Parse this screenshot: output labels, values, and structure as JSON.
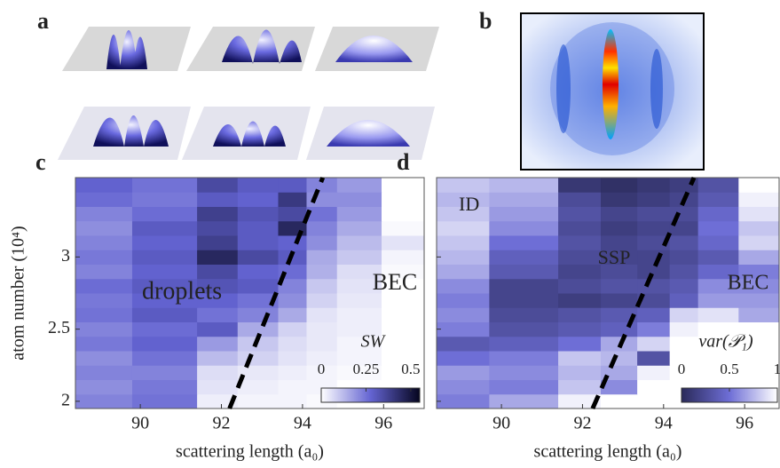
{
  "figure_labels": {
    "a": "a",
    "b": "b"
  },
  "chart_data": [
    {
      "type": "heatmap",
      "panel_label": "c",
      "xlabel": "scattering length (a₀)",
      "ylabel": "atom number (10⁴)",
      "xlim": [
        88.4,
        97.0
      ],
      "xticks": [
        90,
        92,
        94,
        96
      ],
      "ylim": [
        1.95,
        3.55
      ],
      "yticks": [
        2,
        2.5,
        3
      ],
      "show_ytick_labels": true,
      "x_edges": [
        88.4,
        89.8,
        91.4,
        92.4,
        93.4,
        94.1,
        94.85,
        95.95,
        97.0
      ],
      "y_edges": [
        1.95,
        2.05,
        2.15,
        2.25,
        2.35,
        2.45,
        2.55,
        2.65,
        2.75,
        2.85,
        2.95,
        3.05,
        3.15,
        3.25,
        3.35,
        3.45,
        3.55
      ],
      "z": [
        [
          0.22,
          0.25,
          0.03,
          0.02,
          0.02,
          0.01,
          0,
          0
        ],
        [
          0.2,
          0.24,
          0.05,
          0.03,
          0.02,
          0.02,
          0,
          0
        ],
        [
          0.22,
          0.22,
          0.06,
          0.04,
          0.03,
          0.02,
          0.01,
          0
        ],
        [
          0.2,
          0.25,
          0.12,
          0.08,
          0.05,
          0.03,
          0.02,
          0
        ],
        [
          0.24,
          0.28,
          0.18,
          0.1,
          0.06,
          0.04,
          0.02,
          0
        ],
        [
          0.22,
          0.26,
          0.3,
          0.15,
          0.08,
          0.04,
          0.03,
          0
        ],
        [
          0.25,
          0.3,
          0.25,
          0.22,
          0.15,
          0.05,
          0.03,
          0
        ],
        [
          0.24,
          0.28,
          0.28,
          0.25,
          0.2,
          0.08,
          0.04,
          0
        ],
        [
          0.26,
          0.3,
          0.32,
          0.3,
          0.22,
          0.1,
          0.05,
          0
        ],
        [
          0.22,
          0.28,
          0.35,
          0.28,
          0.26,
          0.14,
          0.06,
          0.01
        ],
        [
          0.24,
          0.3,
          0.45,
          0.35,
          0.3,
          0.15,
          0.1,
          0.02
        ],
        [
          0.22,
          0.28,
          0.38,
          0.3,
          0.28,
          0.2,
          0.12,
          0.05
        ],
        [
          0.2,
          0.3,
          0.35,
          0.3,
          0.45,
          0.22,
          0.15,
          0.01
        ],
        [
          0.22,
          0.26,
          0.38,
          0.32,
          0.35,
          0.25,
          0.18,
          0
        ],
        [
          0.26,
          0.24,
          0.3,
          0.28,
          0.4,
          0.2,
          0.2,
          0
        ],
        [
          0.28,
          0.25,
          0.35,
          0.3,
          0.3,
          0.22,
          0.18,
          0
        ]
      ],
      "colormap": [
        "#ffffff",
        "#6464d2",
        "#05051e"
      ],
      "clim": [
        0,
        0.55
      ],
      "colorbar": {
        "label": "SW",
        "ticks": [
          0,
          0.25,
          0.5
        ]
      },
      "boundary": {
        "x": [
          92.2,
          94.5
        ],
        "y": [
          1.95,
          3.55
        ]
      },
      "annotations": [
        "droplets",
        "BEC"
      ]
    },
    {
      "type": "heatmap",
      "panel_label": "d",
      "xlabel": "scattering length (a₀)",
      "xlim": [
        88.4,
        96.85
      ],
      "xticks": [
        90,
        92,
        94,
        96
      ],
      "ylim": [
        1.95,
        3.55
      ],
      "yticks": [
        2,
        2.5,
        3
      ],
      "show_ytick_labels": false,
      "x_edges": [
        88.4,
        89.7,
        91.4,
        92.45,
        93.35,
        94.15,
        94.85,
        95.85,
        96.85
      ],
      "y_edges": [
        1.95,
        2.05,
        2.15,
        2.25,
        2.35,
        2.45,
        2.55,
        2.65,
        2.75,
        2.85,
        2.95,
        3.05,
        3.15,
        3.25,
        3.35,
        3.45,
        3.55
      ],
      "z": [
        [
          0.55,
          0.7,
          0.95,
          1,
          1,
          1,
          1,
          1
        ],
        [
          0.6,
          0.55,
          0.8,
          0.6,
          1,
          1,
          1,
          1
        ],
        [
          0.65,
          0.6,
          0.75,
          0.7,
          0.95,
          1,
          1,
          1
        ],
        [
          0.5,
          0.55,
          0.8,
          0.75,
          0.3,
          1,
          1,
          1
        ],
        [
          0.35,
          0.4,
          0.5,
          0.7,
          0.85,
          1,
          1,
          1
        ],
        [
          0.55,
          0.3,
          0.35,
          0.4,
          0.55,
          0.95,
          1,
          1
        ],
        [
          0.6,
          0.25,
          0.3,
          0.35,
          0.4,
          0.85,
          0.9,
          0.7
        ],
        [
          0.55,
          0.2,
          0.15,
          0.2,
          0.25,
          0.4,
          0.65,
          0.65
        ],
        [
          0.6,
          0.2,
          0.25,
          0.3,
          0.3,
          0.35,
          0.6,
          0.6
        ],
        [
          0.7,
          0.35,
          0.2,
          0.25,
          0.2,
          0.3,
          0.45,
          0.55
        ],
        [
          0.75,
          0.4,
          0.25,
          0.2,
          0.2,
          0.25,
          0.35,
          0.7
        ],
        [
          0.8,
          0.5,
          0.3,
          0.2,
          0.25,
          0.3,
          0.45,
          0.85
        ],
        [
          0.85,
          0.6,
          0.25,
          0.15,
          0.2,
          0.2,
          0.5,
          0.8
        ],
        [
          0.8,
          0.65,
          0.3,
          0.2,
          0.25,
          0.25,
          0.45,
          0.9
        ],
        [
          0.75,
          0.7,
          0.25,
          0.1,
          0.15,
          0.2,
          0.35,
          0.95
        ],
        [
          0.8,
          0.75,
          0.1,
          0.05,
          0.1,
          0.15,
          0.3,
          1
        ]
      ],
      "colormap": [
        "#2a2a5a",
        "#6e6ed6",
        "#ffffff"
      ],
      "clim": [
        0,
        1
      ],
      "colorbar": {
        "label": "var(𝒫₁)",
        "ticks": [
          0,
          0.5,
          1
        ]
      },
      "boundary": {
        "x": [
          92.25,
          94.75
        ],
        "y": [
          1.95,
          3.55
        ]
      },
      "annotations": [
        "ID",
        "SSP",
        "BEC"
      ]
    }
  ]
}
